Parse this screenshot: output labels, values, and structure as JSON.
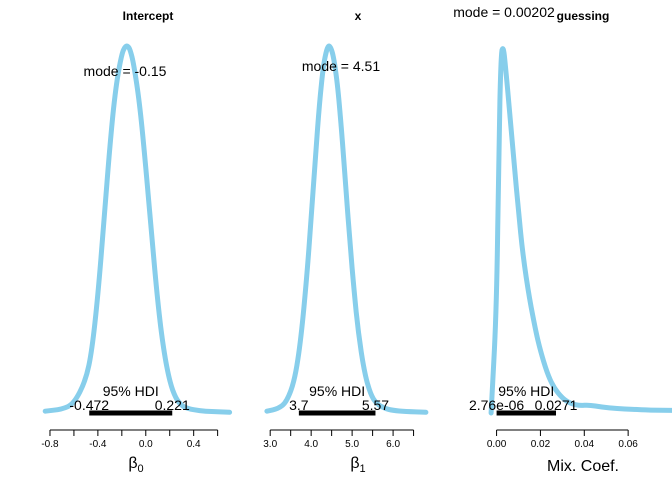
{
  "chart_data": [
    {
      "type": "line",
      "title": "Intercept",
      "xlabel_main": "β",
      "xlabel_sub": "0",
      "xlim": [
        -0.9,
        0.72
      ],
      "xticks": [
        -0.8,
        -0.6,
        -0.4,
        -0.2,
        0.0,
        0.2,
        0.4,
        0.6
      ],
      "xtick_labels": [
        "-0.8",
        "",
        "-0.4",
        "",
        "0.0",
        "",
        "0.4",
        ""
      ],
      "density_x": [
        -0.84,
        -0.7,
        -0.6,
        -0.5,
        -0.45,
        -0.4,
        -0.35,
        -0.3,
        -0.25,
        -0.2,
        -0.17,
        -0.15,
        -0.13,
        -0.1,
        -0.05,
        0.0,
        0.05,
        0.1,
        0.15,
        0.2,
        0.25,
        0.3,
        0.35,
        0.45,
        0.55,
        0.7
      ],
      "density_y": [
        0.005,
        0.01,
        0.025,
        0.09,
        0.17,
        0.32,
        0.52,
        0.73,
        0.89,
        0.98,
        1.0,
        1.0,
        0.99,
        0.95,
        0.84,
        0.67,
        0.48,
        0.3,
        0.17,
        0.085,
        0.04,
        0.02,
        0.012,
        0.006,
        0.004,
        0.002
      ],
      "mode_label": "mode = -0.15",
      "hdi_label": "95% HDI",
      "hdi": [
        -0.472,
        0.221
      ],
      "hdi_low_label": "-0.472",
      "hdi_high_label": "0.221"
    },
    {
      "type": "line",
      "title": "x",
      "xlabel_main": "β",
      "xlabel_sub": "1",
      "xlim": [
        2.8,
        6.95
      ],
      "xticks": [
        3.0,
        3.5,
        4.0,
        4.5,
        5.0,
        5.5,
        6.0,
        6.5
      ],
      "xtick_labels": [
        "3.0",
        "",
        "4.0",
        "",
        "5.0",
        "",
        "6.0",
        ""
      ],
      "density_x": [
        2.92,
        3.2,
        3.4,
        3.6,
        3.75,
        3.9,
        4.0,
        4.1,
        4.2,
        4.3,
        4.4,
        4.47,
        4.55,
        4.65,
        4.75,
        4.85,
        4.95,
        5.05,
        5.15,
        5.3,
        5.45,
        5.6,
        5.8,
        6.0,
        6.3,
        6.8
      ],
      "density_y": [
        0.005,
        0.012,
        0.03,
        0.09,
        0.2,
        0.38,
        0.53,
        0.69,
        0.84,
        0.95,
        1.0,
        1.0,
        0.97,
        0.89,
        0.76,
        0.61,
        0.46,
        0.33,
        0.22,
        0.11,
        0.05,
        0.025,
        0.012,
        0.007,
        0.004,
        0.002
      ],
      "mode_label": "mode = 4.51",
      "hdi_label": "95% HDI",
      "hdi": [
        3.7,
        5.57
      ],
      "hdi_low_label": "3.7",
      "hdi_high_label": "5.57"
    },
    {
      "type": "line",
      "title": "guessing",
      "xlabel_main": "Mix. Coef.",
      "xlabel_sub": "",
      "xlim": [
        -0.003,
        0.08
      ],
      "xticks": [
        0.0,
        0.02,
        0.04,
        0.06
      ],
      "xtick_labels": [
        "0.00",
        "0.02",
        "0.04",
        "0.06"
      ],
      "density_x": [
        -0.0025,
        0.0,
        0.001,
        0.002,
        0.003,
        0.004,
        0.006,
        0.008,
        0.01,
        0.012,
        0.015,
        0.018,
        0.02,
        0.023,
        0.026,
        0.03,
        0.034,
        0.038,
        0.042,
        0.048,
        0.055,
        0.062,
        0.07,
        0.08
      ],
      "density_y": [
        0.0,
        0.28,
        0.72,
        0.98,
        1.0,
        0.95,
        0.82,
        0.68,
        0.55,
        0.43,
        0.31,
        0.22,
        0.17,
        0.11,
        0.07,
        0.04,
        0.025,
        0.02,
        0.022,
        0.016,
        0.012,
        0.01,
        0.008,
        0.007
      ],
      "mode_label": "mode = 0.00202",
      "hdi_label": "95% HDI",
      "hdi": [
        2.76e-06,
        0.0271
      ],
      "hdi_low_label": "2.76e-06",
      "hdi_high_label": "0.0271"
    }
  ],
  "colors": {
    "curve": "#87ceeb",
    "hdi": "#000000",
    "axis": "#000000"
  }
}
